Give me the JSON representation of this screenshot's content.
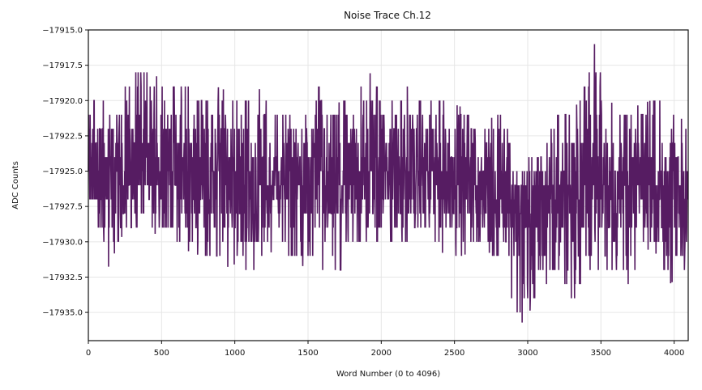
{
  "chart_data": {
    "type": "line",
    "title": "Noise Trace Ch.12",
    "xlabel": "Word Number (0 to 4096)",
    "ylabel": "ADC Counts",
    "xlim": [
      0,
      4096
    ],
    "ylim": [
      -17937.0,
      -17915.0
    ],
    "xticks": [
      0,
      500,
      1000,
      1500,
      2000,
      2500,
      3000,
      3500,
      4000
    ],
    "yticks": [
      -17915.0,
      -17917.5,
      -17920.0,
      -17922.5,
      -17925.0,
      -17927.5,
      -17930.0,
      -17932.5,
      -17935.0
    ],
    "grid": true,
    "line_color": "#561c62",
    "series": [
      {
        "x": [
          0,
          128,
          256,
          384,
          512,
          640,
          768,
          896,
          1024,
          1152,
          1280,
          1408,
          1536,
          1664,
          1792,
          1920,
          2048,
          2176,
          2304,
          2432,
          2560,
          2688,
          2816,
          2944,
          3072,
          3200,
          3328,
          3456,
          3584,
          3712,
          3840,
          3968,
          4095
        ],
        "y_max": [
          -17920.0,
          -17920.0,
          -17918.5,
          -17917.0,
          -17919.0,
          -17918.5,
          -17920.0,
          -17919.0,
          -17920.0,
          -17919.0,
          -17920.5,
          -17921.0,
          -17918.0,
          -17920.5,
          -17919.5,
          -17918.0,
          -17920.0,
          -17918.5,
          -17920.0,
          -17920.0,
          -17920.5,
          -17922.0,
          -17920.5,
          -17924.5,
          -17922.0,
          -17921.0,
          -17920.5,
          -17916.0,
          -17920.5,
          -17920.5,
          -17920.0,
          -17920.0,
          -17922.0
        ],
        "y_min": [
          -17929.0,
          -17932.0,
          -17929.0,
          -17930.0,
          -17929.0,
          -17930.5,
          -17931.0,
          -17932.0,
          -17931.5,
          -17933.0,
          -17930.0,
          -17931.5,
          -17932.0,
          -17934.0,
          -17930.0,
          -17930.0,
          -17930.0,
          -17930.5,
          -17929.0,
          -17931.0,
          -17931.0,
          -17930.0,
          -17932.0,
          -17936.0,
          -17934.0,
          -17932.0,
          -17935.0,
          -17932.0,
          -17932.0,
          -17934.0,
          -17930.0,
          -17933.0,
          -17932.0
        ],
        "y_mean": [
          -17925.0,
          -17925.5,
          -17925.0,
          -17924.5,
          -17924.5,
          -17925.0,
          -17925.5,
          -17925.5,
          -17925.5,
          -17926.0,
          -17925.5,
          -17925.5,
          -17925.0,
          -17926.0,
          -17925.5,
          -17925.0,
          -17925.0,
          -17925.0,
          -17925.0,
          -17925.0,
          -17925.5,
          -17926.0,
          -17926.0,
          -17927.5,
          -17927.0,
          -17926.5,
          -17927.0,
          -17926.0,
          -17926.0,
          -17926.5,
          -17926.0,
          -17926.0,
          -17927.0
        ]
      }
    ]
  }
}
